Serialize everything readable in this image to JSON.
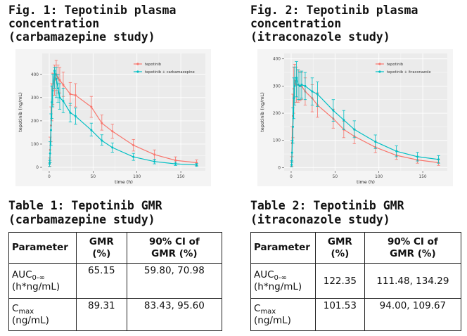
{
  "figures": [
    {
      "title_lines": [
        "Fig. 1: Tepotinib plasma",
        "concentration",
        "(carbamazepine study)"
      ]
    },
    {
      "title_lines": [
        "Fig. 2: Tepotinib plasma",
        "concentration",
        "(itraconazole study)"
      ]
    }
  ],
  "tables": [
    {
      "title_lines": [
        "Table 1: Tepotinib GMR",
        "(carbamazepine study)"
      ],
      "headers": {
        "parameter": "Parameter",
        "gmr": [
          "GMR",
          "(%)"
        ],
        "ci": [
          "90% CI of",
          "GMR (%)"
        ]
      },
      "rows": [
        {
          "param_main": "AUC",
          "param_sub": "0-∞",
          "param_unit": "(h*ng/mL)",
          "gmr": "65.15",
          "ci": "59.80, 70.98"
        },
        {
          "param_main": "C",
          "param_sub": "max",
          "param_unit": "(ng/mL)",
          "gmr": "89.31",
          "ci": "83.43, 95.60"
        }
      ]
    },
    {
      "title_lines": [
        "Table 2: Tepotinib GMR",
        "(itraconazole study)"
      ],
      "headers": {
        "parameter": "Parameter",
        "gmr": [
          "GMR",
          "(%)"
        ],
        "ci": [
          "90% CI of",
          "GMR (%)"
        ]
      },
      "rows": [
        {
          "param_main": "AUC",
          "param_sub": "0-∞",
          "param_unit": "(h*ng/mL)",
          "gmr": "122.35",
          "ci": "111.48, 134.29"
        },
        {
          "param_main": "C",
          "param_sub": "max",
          "param_unit": "(ng/mL)",
          "gmr": "101.53",
          "ci": "94.00, 109.67"
        }
      ]
    }
  ],
  "colors": {
    "series1": "#f8766d",
    "series2": "#00bfc4",
    "panel_bg": "#ebebeb",
    "grid": "#ffffff"
  },
  "chart_data": [
    {
      "type": "line",
      "xlabel": "time (h)",
      "ylabel": "tepotinib (ng/mL)",
      "xlim": [
        -8,
        178
      ],
      "ylim": [
        -15,
        490
      ],
      "xticks": [
        0,
        50,
        100,
        150
      ],
      "yticks": [
        0,
        100,
        200,
        300,
        400
      ],
      "grid": true,
      "legend_position": "top-right",
      "series": [
        {
          "name": "tepotinib",
          "color": "#f8766d",
          "points": [
            {
              "x": 0.5,
              "y": 20,
              "lo": 5,
              "hi": 40
            },
            {
              "x": 1,
              "y": 75,
              "lo": 30,
              "hi": 130
            },
            {
              "x": 2,
              "y": 180,
              "lo": 110,
              "hi": 260
            },
            {
              "x": 3,
              "y": 280,
              "lo": 200,
              "hi": 360
            },
            {
              "x": 4,
              "y": 340,
              "lo": 270,
              "hi": 405
            },
            {
              "x": 6,
              "y": 375,
              "lo": 310,
              "hi": 440
            },
            {
              "x": 8,
              "y": 400,
              "lo": 330,
              "hi": 460
            },
            {
              "x": 10,
              "y": 385,
              "lo": 320,
              "hi": 440
            },
            {
              "x": 12,
              "y": 375,
              "lo": 320,
              "hi": 430
            },
            {
              "x": 16,
              "y": 355,
              "lo": 305,
              "hi": 410
            },
            {
              "x": 24,
              "y": 315,
              "lo": 265,
              "hi": 365
            },
            {
              "x": 30,
              "y": 310,
              "lo": 260,
              "hi": 360
            },
            {
              "x": 48,
              "y": 260,
              "lo": 215,
              "hi": 305
            },
            {
              "x": 60,
              "y": 190,
              "lo": 160,
              "hi": 225
            },
            {
              "x": 72,
              "y": 155,
              "lo": 125,
              "hi": 185
            },
            {
              "x": 96,
              "y": 95,
              "lo": 70,
              "hi": 120
            },
            {
              "x": 120,
              "y": 55,
              "lo": 35,
              "hi": 75
            },
            {
              "x": 144,
              "y": 30,
              "lo": 15,
              "hi": 45
            },
            {
              "x": 168,
              "y": 20,
              "lo": 8,
              "hi": 32
            }
          ]
        },
        {
          "name": "tepotinib + carbamazepine",
          "color": "#00bfc4",
          "points": [
            {
              "x": 0.5,
              "y": 15,
              "lo": 3,
              "hi": 30
            },
            {
              "x": 1,
              "y": 60,
              "lo": 20,
              "hi": 110
            },
            {
              "x": 2,
              "y": 160,
              "lo": 95,
              "hi": 230
            },
            {
              "x": 3,
              "y": 280,
              "lo": 210,
              "hi": 350
            },
            {
              "x": 4,
              "y": 330,
              "lo": 260,
              "hi": 400
            },
            {
              "x": 6,
              "y": 415,
              "lo": 340,
              "hi": 430
            },
            {
              "x": 8,
              "y": 380,
              "lo": 300,
              "hi": 430
            },
            {
              "x": 10,
              "y": 340,
              "lo": 280,
              "hi": 400
            },
            {
              "x": 12,
              "y": 300,
              "lo": 250,
              "hi": 360
            },
            {
              "x": 16,
              "y": 285,
              "lo": 235,
              "hi": 340
            },
            {
              "x": 24,
              "y": 235,
              "lo": 195,
              "hi": 275
            },
            {
              "x": 30,
              "y": 220,
              "lo": 185,
              "hi": 255
            },
            {
              "x": 48,
              "y": 160,
              "lo": 135,
              "hi": 190
            },
            {
              "x": 60,
              "y": 115,
              "lo": 95,
              "hi": 140
            },
            {
              "x": 72,
              "y": 85,
              "lo": 65,
              "hi": 105
            },
            {
              "x": 96,
              "y": 45,
              "lo": 30,
              "hi": 60
            },
            {
              "x": 120,
              "y": 25,
              "lo": 15,
              "hi": 35
            },
            {
              "x": 144,
              "y": 15,
              "lo": 8,
              "hi": 22
            },
            {
              "x": 168,
              "y": 10,
              "lo": 4,
              "hi": 16
            }
          ]
        }
      ]
    },
    {
      "type": "line",
      "xlabel": "time (h)",
      "ylabel": "tepotinib (ng/mL)",
      "xlim": [
        -8,
        178
      ],
      "ylim": [
        -12,
        420
      ],
      "xticks": [
        0,
        50,
        100,
        150
      ],
      "yticks": [
        0,
        100,
        200,
        300,
        400
      ],
      "grid": true,
      "legend_position": "top-right",
      "series": [
        {
          "name": "tepotinib",
          "color": "#f8766d",
          "points": [
            {
              "x": 0.5,
              "y": 20,
              "lo": 5,
              "hi": 40
            },
            {
              "x": 1,
              "y": 90,
              "lo": 40,
              "hi": 150
            },
            {
              "x": 2,
              "y": 190,
              "lo": 110,
              "hi": 270
            },
            {
              "x": 3,
              "y": 290,
              "lo": 200,
              "hi": 370
            },
            {
              "x": 4,
              "y": 320,
              "lo": 240,
              "hi": 380
            },
            {
              "x": 6,
              "y": 305,
              "lo": 240,
              "hi": 370
            },
            {
              "x": 8,
              "y": 305,
              "lo": 240,
              "hi": 360
            },
            {
              "x": 10,
              "y": 300,
              "lo": 245,
              "hi": 355
            },
            {
              "x": 12,
              "y": 300,
              "lo": 250,
              "hi": 350
            },
            {
              "x": 16,
              "y": 280,
              "lo": 230,
              "hi": 330
            },
            {
              "x": 24,
              "y": 255,
              "lo": 205,
              "hi": 305
            },
            {
              "x": 30,
              "y": 230,
              "lo": 185,
              "hi": 275
            },
            {
              "x": 48,
              "y": 180,
              "lo": 145,
              "hi": 215
            },
            {
              "x": 60,
              "y": 140,
              "lo": 110,
              "hi": 170
            },
            {
              "x": 72,
              "y": 115,
              "lo": 88,
              "hi": 142
            },
            {
              "x": 96,
              "y": 75,
              "lo": 55,
              "hi": 98
            },
            {
              "x": 120,
              "y": 45,
              "lo": 30,
              "hi": 62
            },
            {
              "x": 144,
              "y": 28,
              "lo": 16,
              "hi": 40
            },
            {
              "x": 168,
              "y": 18,
              "lo": 8,
              "hi": 28
            }
          ]
        },
        {
          "name": "tepotinib + itraconazole",
          "color": "#00bfc4",
          "points": [
            {
              "x": 0.5,
              "y": 10,
              "lo": 2,
              "hi": 25
            },
            {
              "x": 1,
              "y": 55,
              "lo": 20,
              "hi": 100
            },
            {
              "x": 2,
              "y": 150,
              "lo": 90,
              "hi": 220
            },
            {
              "x": 3,
              "y": 255,
              "lo": 180,
              "hi": 330
            },
            {
              "x": 4,
              "y": 300,
              "lo": 230,
              "hi": 370
            },
            {
              "x": 6,
              "y": 330,
              "lo": 260,
              "hi": 390
            },
            {
              "x": 8,
              "y": 305,
              "lo": 250,
              "hi": 360
            },
            {
              "x": 10,
              "y": 300,
              "lo": 250,
              "hi": 350
            },
            {
              "x": 12,
              "y": 305,
              "lo": 255,
              "hi": 355
            },
            {
              "x": 16,
              "y": 300,
              "lo": 250,
              "hi": 350
            },
            {
              "x": 24,
              "y": 280,
              "lo": 230,
              "hi": 330
            },
            {
              "x": 30,
              "y": 270,
              "lo": 225,
              "hi": 315
            },
            {
              "x": 48,
              "y": 210,
              "lo": 170,
              "hi": 250
            },
            {
              "x": 60,
              "y": 175,
              "lo": 140,
              "hi": 210
            },
            {
              "x": 72,
              "y": 140,
              "lo": 110,
              "hi": 172
            },
            {
              "x": 96,
              "y": 95,
              "lo": 70,
              "hi": 120
            },
            {
              "x": 120,
              "y": 60,
              "lo": 40,
              "hi": 80
            },
            {
              "x": 144,
              "y": 40,
              "lo": 24,
              "hi": 56
            },
            {
              "x": 168,
              "y": 30,
              "lo": 16,
              "hi": 44
            }
          ]
        }
      ]
    }
  ]
}
